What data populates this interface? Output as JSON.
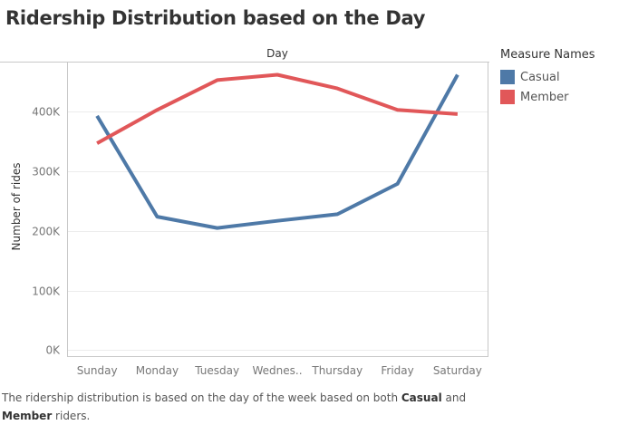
{
  "title": "Ridership Distribution based on the Day",
  "column_header": "Day",
  "legend": {
    "title": "Measure Names",
    "items": [
      {
        "label": "Casual",
        "color": "#4e79a7"
      },
      {
        "label": "Member",
        "color": "#e15759"
      }
    ]
  },
  "caption": {
    "part1": "The ridership distribution is based on the day of the week based on both ",
    "casual": "Casual",
    "part2": " and ",
    "member": "Member",
    "part3": " riders."
  },
  "chart_data": {
    "type": "line",
    "title": "Ridership Distribution based on the Day",
    "xlabel": "",
    "ylabel": "Number of rides",
    "categories": [
      "Sunday",
      "Monday",
      "Tuesday",
      "Wednes..",
      "Thursday",
      "Friday",
      "Saturday"
    ],
    "series": [
      {
        "name": "Casual",
        "color": "#4e79a7",
        "values": [
          393000,
          224000,
          205000,
          217000,
          228000,
          279000,
          462000
        ]
      },
      {
        "name": "Member",
        "color": "#e15759",
        "values": [
          347000,
          403000,
          453000,
          462000,
          439000,
          403000,
          396000
        ]
      }
    ],
    "ylim": [
      -10000,
      484000
    ],
    "yticks": [
      0,
      100000,
      200000,
      300000,
      400000
    ],
    "ytick_labels": [
      "0K",
      "100K",
      "200K",
      "300K",
      "400K"
    ],
    "grid": true
  }
}
